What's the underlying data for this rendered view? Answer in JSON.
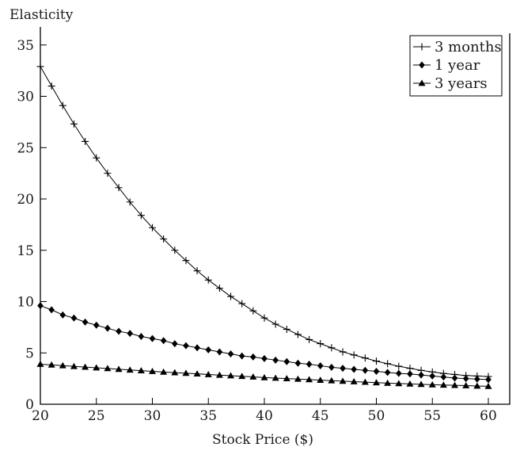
{
  "chart_data": {
    "type": "line",
    "title": "",
    "ylabel": "Elasticity",
    "xlabel": "Stock Price ($)",
    "xlim": [
      20,
      60
    ],
    "ylim": [
      0,
      36
    ],
    "xticks": [
      20,
      25,
      30,
      35,
      40,
      45,
      50,
      55,
      60
    ],
    "yticks": [
      0,
      5,
      10,
      15,
      20,
      25,
      30,
      35
    ],
    "legend_position": "top-right",
    "grid": false,
    "x": [
      20,
      21,
      22,
      23,
      24,
      25,
      26,
      27,
      28,
      29,
      30,
      31,
      32,
      33,
      34,
      35,
      36,
      37,
      38,
      39,
      40,
      41,
      42,
      43,
      44,
      45,
      46,
      47,
      48,
      49,
      50,
      51,
      52,
      53,
      54,
      55,
      56,
      57,
      58,
      59,
      60
    ],
    "series": [
      {
        "name": "3 months",
        "marker": "plus",
        "values": [
          32.9,
          31.0,
          29.1,
          27.3,
          25.6,
          24.0,
          22.5,
          21.1,
          19.7,
          18.4,
          17.2,
          16.1,
          15.0,
          14.0,
          13.0,
          12.1,
          11.3,
          10.5,
          9.8,
          9.1,
          8.4,
          7.8,
          7.3,
          6.8,
          6.3,
          5.9,
          5.5,
          5.1,
          4.8,
          4.5,
          4.2,
          3.95,
          3.7,
          3.5,
          3.3,
          3.15,
          3.0,
          2.9,
          2.8,
          2.75,
          2.7
        ]
      },
      {
        "name": "1 year",
        "marker": "diamond",
        "values": [
          9.6,
          9.2,
          8.7,
          8.4,
          8.0,
          7.7,
          7.4,
          7.1,
          6.9,
          6.6,
          6.4,
          6.2,
          5.9,
          5.7,
          5.5,
          5.3,
          5.1,
          4.9,
          4.7,
          4.6,
          4.45,
          4.3,
          4.15,
          4.0,
          3.9,
          3.75,
          3.6,
          3.5,
          3.4,
          3.3,
          3.2,
          3.1,
          3.0,
          2.95,
          2.85,
          2.75,
          2.65,
          2.55,
          2.5,
          2.45,
          2.4
        ]
      },
      {
        "name": "3 years",
        "marker": "triangle",
        "values": [
          3.9,
          3.83,
          3.76,
          3.69,
          3.62,
          3.55,
          3.48,
          3.41,
          3.34,
          3.27,
          3.2,
          3.14,
          3.08,
          3.02,
          2.96,
          2.9,
          2.84,
          2.78,
          2.72,
          2.66,
          2.6,
          2.55,
          2.5,
          2.45,
          2.4,
          2.35,
          2.3,
          2.25,
          2.2,
          2.15,
          2.1,
          2.06,
          2.02,
          1.98,
          1.94,
          1.9,
          1.87,
          1.84,
          1.81,
          1.78,
          1.75
        ]
      }
    ]
  }
}
